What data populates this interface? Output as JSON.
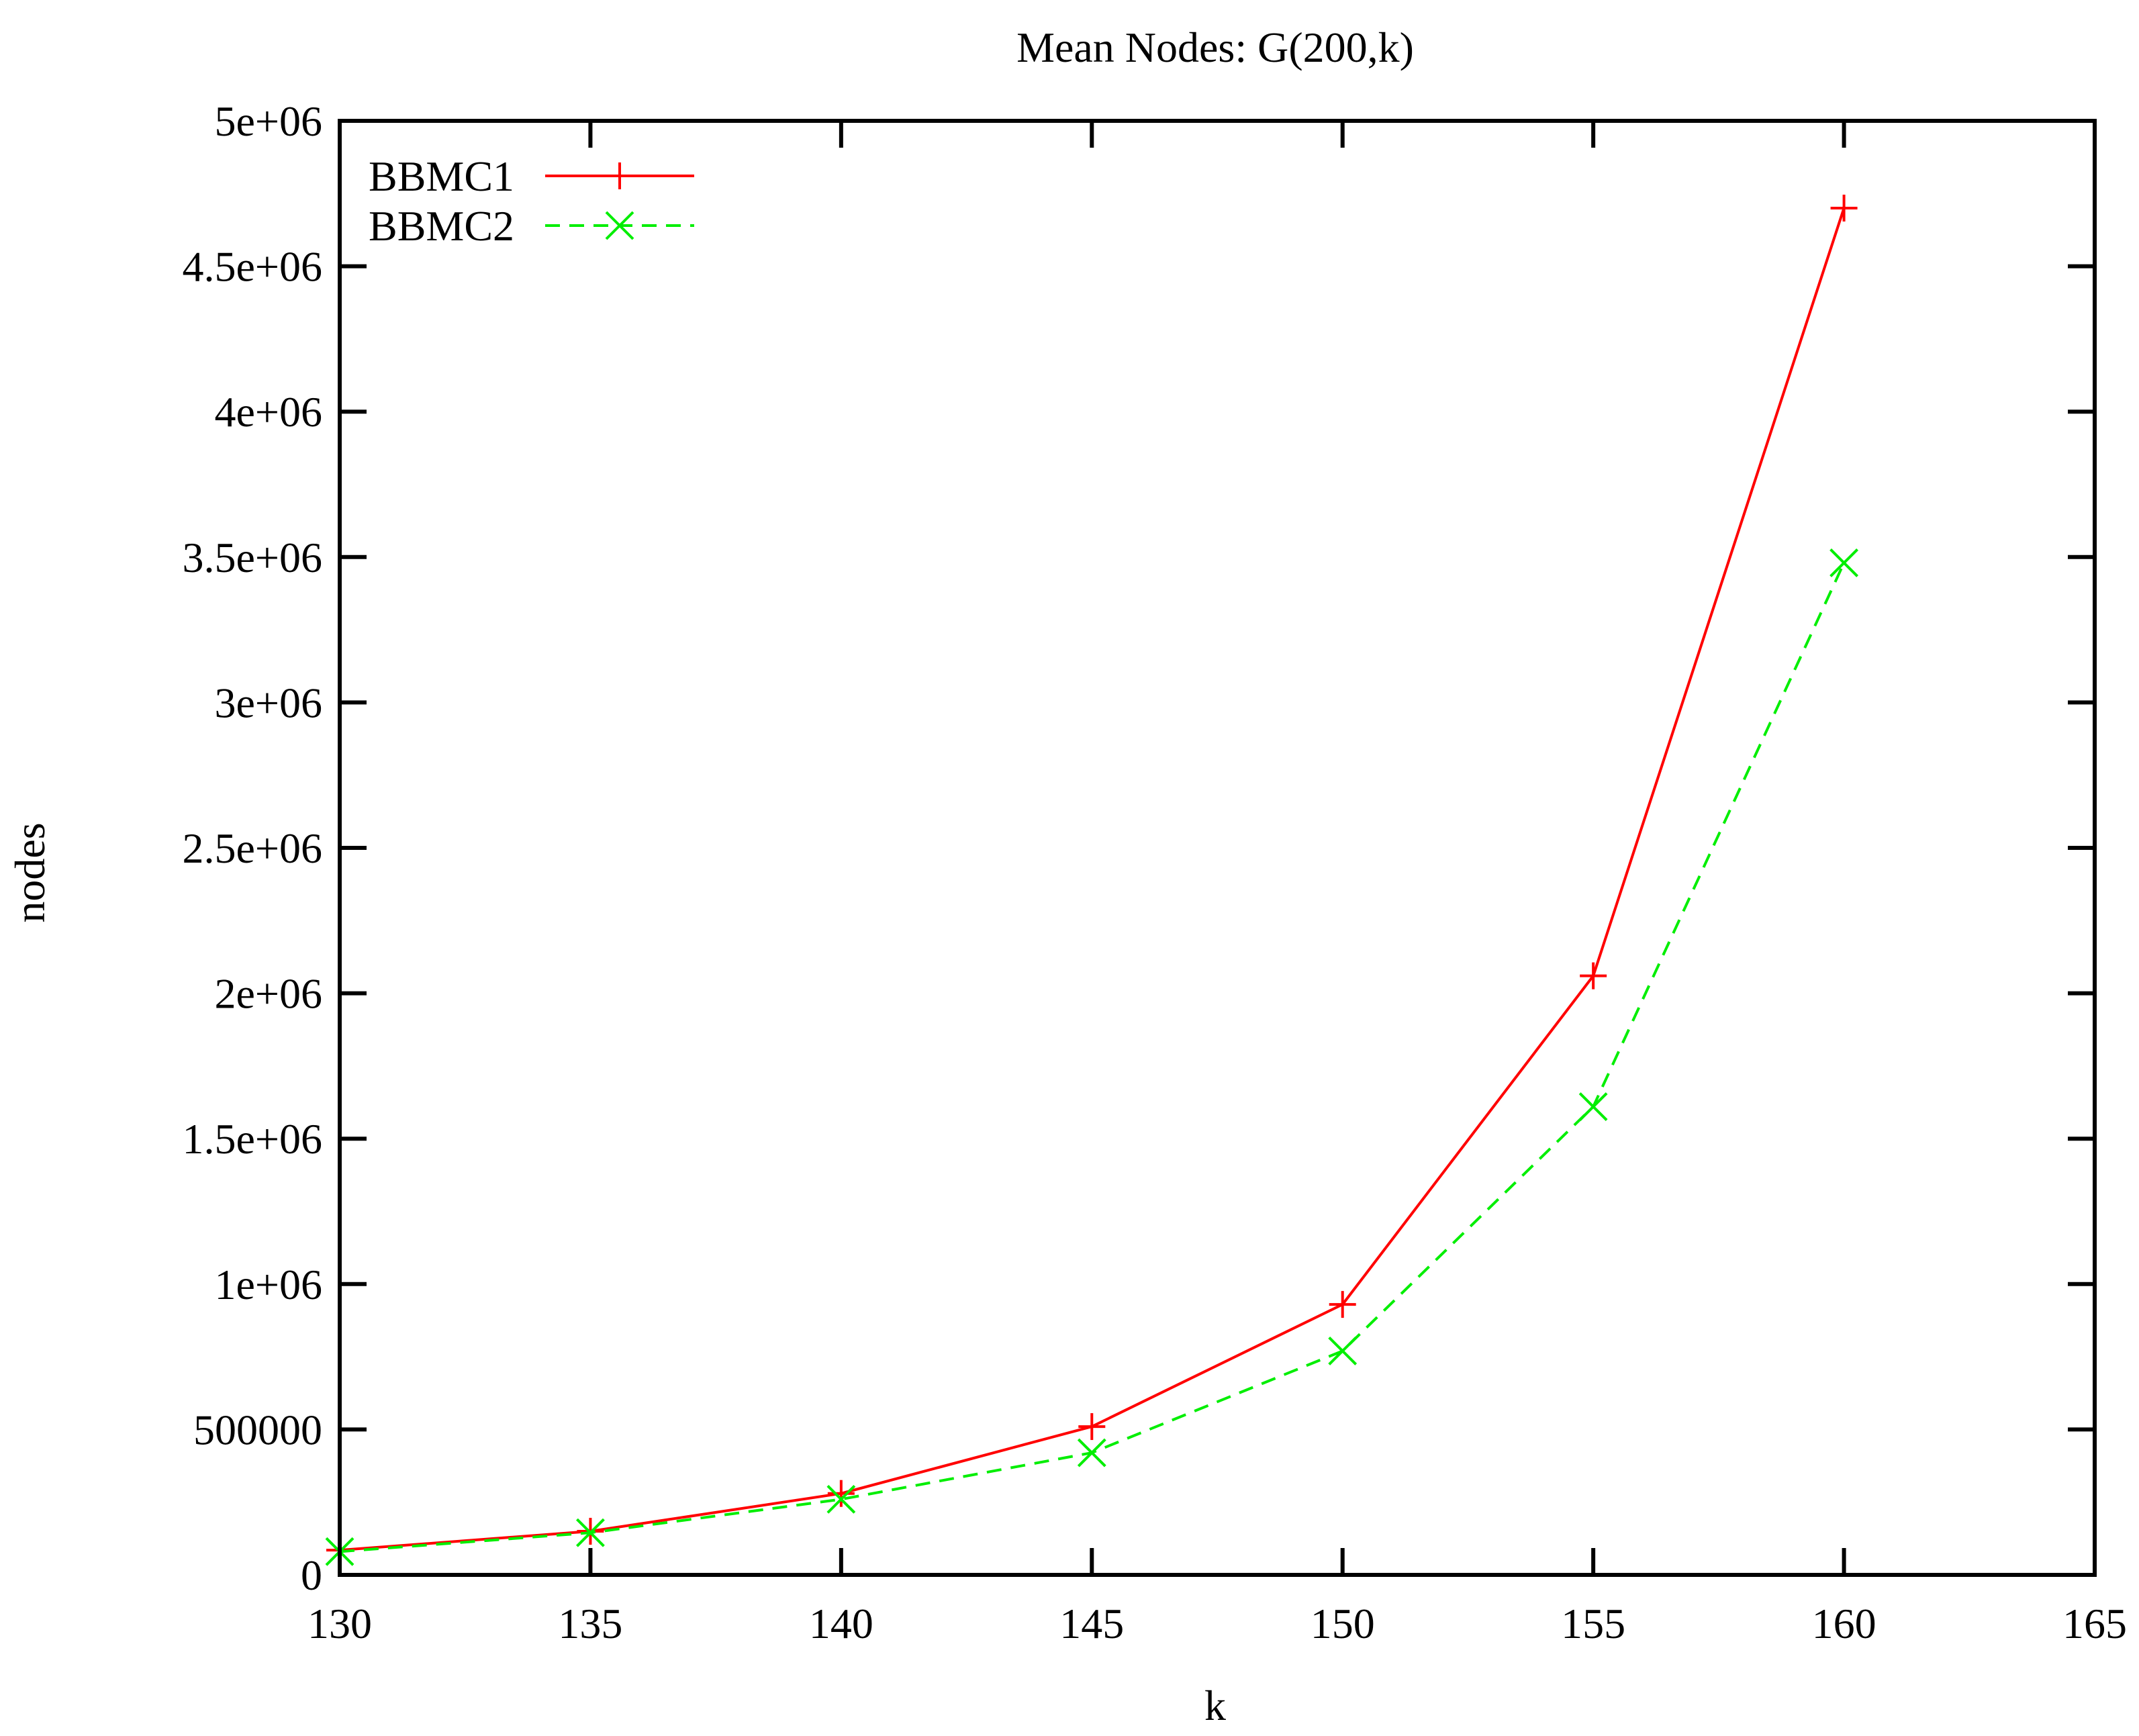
{
  "chart_data": {
    "type": "line",
    "title": "Mean Nodes: G(200,k)",
    "xlabel": "k",
    "ylabel": "nodes",
    "xlim": [
      130,
      165
    ],
    "ylim": [
      0,
      5000000
    ],
    "x_ticks": [
      130,
      135,
      140,
      145,
      150,
      155,
      160,
      165
    ],
    "x_tick_labels": [
      "130",
      "135",
      "140",
      "145",
      "150",
      "155",
      "160",
      "165"
    ],
    "y_ticks": [
      0,
      500000,
      1000000,
      1500000,
      2000000,
      2500000,
      3000000,
      3500000,
      4000000,
      4500000,
      5000000
    ],
    "y_tick_labels": [
      "0",
      "500000",
      "1e+06",
      "1.5e+06",
      "2e+06",
      "2.5e+06",
      "3e+06",
      "3.5e+06",
      "4e+06",
      "4.5e+06",
      "5e+06"
    ],
    "grid": false,
    "legend_position": "top-left",
    "x": [
      130,
      135,
      140,
      145,
      150,
      155,
      160
    ],
    "series": [
      {
        "name": "BBMC1",
        "color": "#ff0000",
        "line_style": "solid",
        "marker": "plus",
        "values": [
          85000,
          150000,
          280000,
          510000,
          930000,
          2060000,
          4700000
        ]
      },
      {
        "name": "BBMC2",
        "color": "#00ee00",
        "line_style": "dashed",
        "marker": "cross",
        "values": [
          80000,
          145000,
          260000,
          420000,
          770000,
          1610000,
          3480000
        ]
      }
    ]
  }
}
